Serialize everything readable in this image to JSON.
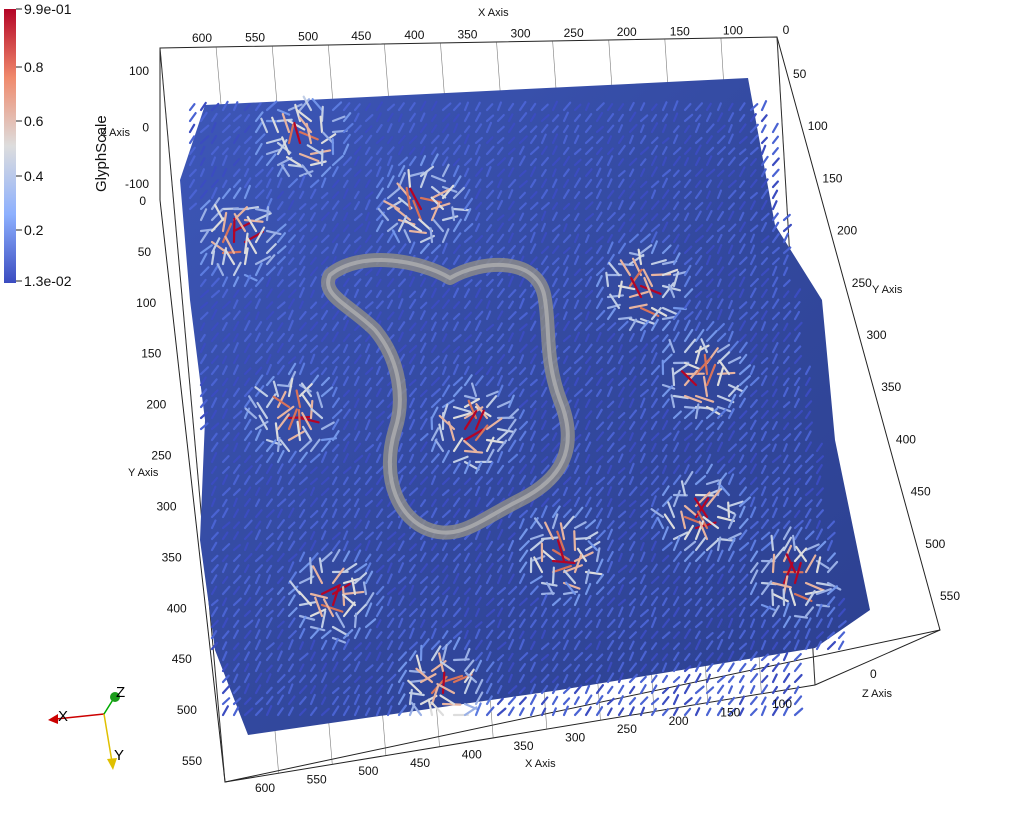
{
  "colorbar": {
    "title": "GlyphScale",
    "labels": [
      "9.9e-01",
      "0.8",
      "0.6",
      "0.4",
      "0.2",
      "1.3e-02"
    ],
    "colors": {
      "high": "#b40426",
      "mid": "#dddddd",
      "low": "#3b4cc0"
    }
  },
  "axes": {
    "x_top_title": "X Axis",
    "x_top_ticks": [
      "600",
      "550",
      "500",
      "450",
      "400",
      "350",
      "300",
      "250",
      "200",
      "150",
      "100",
      "0"
    ],
    "x_bottom_title": "X Axis",
    "x_bottom_ticks": [
      "600",
      "550",
      "500",
      "450",
      "400",
      "350",
      "300",
      "250",
      "200",
      "150",
      "100"
    ],
    "y_left_title": "Y Axis",
    "y_left_ticks": [
      "0",
      "50",
      "100",
      "150",
      "200",
      "250",
      "300",
      "350",
      "400",
      "450",
      "500",
      "550"
    ],
    "y_right_title": "Y Axis",
    "y_right_ticks": [
      "50",
      "100",
      "150",
      "200",
      "250",
      "300",
      "350",
      "400",
      "450",
      "500",
      "550"
    ],
    "z_left_title": "Z Axis",
    "z_left_ticks": [
      "100",
      "0",
      "-100"
    ],
    "z_right_title": "Z Axis",
    "z_right_ticks": [
      "0"
    ]
  },
  "orientation": {
    "x": "X",
    "y": "Y",
    "z": "Z"
  },
  "field": {
    "glyph_colors": [
      "#3b4cc0",
      "#4a63d3",
      "#5b7be0",
      "#7396ea",
      "#9ab0e6",
      "#c0cde6",
      "#dddddd",
      "#e8b4a0",
      "#d8735a",
      "#b40426"
    ]
  }
}
